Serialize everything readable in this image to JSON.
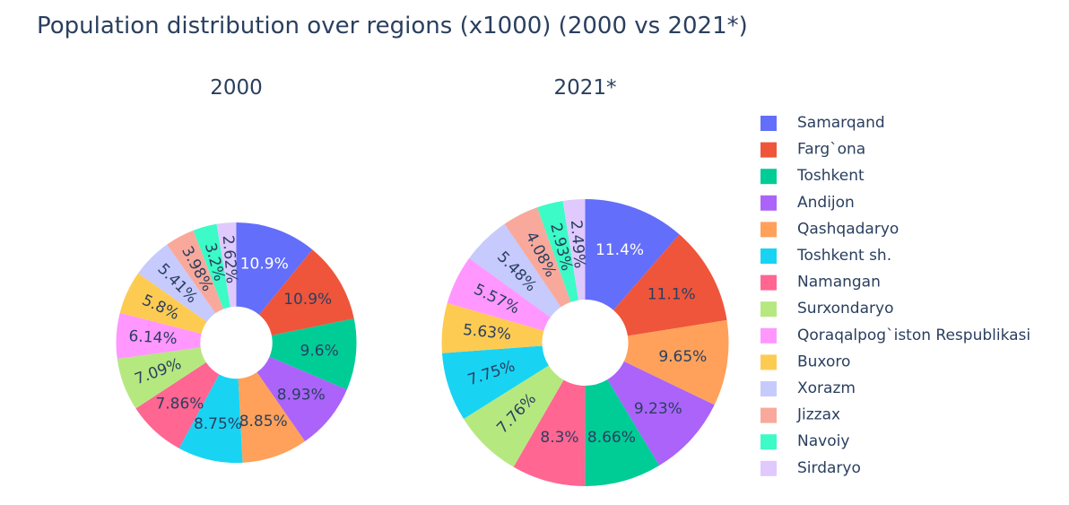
{
  "chart_data": {
    "type": "pie",
    "title": "Population distribution over regions (x1000) (2000 vs 2021*)",
    "hole": true,
    "legend_position": "right",
    "legend": [
      {
        "name": "Samarqand",
        "color": "#636efa"
      },
      {
        "name": "Farg`ona",
        "color": "#ef553b"
      },
      {
        "name": "Toshkent",
        "color": "#00cc96"
      },
      {
        "name": "Andijon",
        "color": "#ab63fa"
      },
      {
        "name": "Qashqadaryo",
        "color": "#ffa15a"
      },
      {
        "name": "Toshkent sh.",
        "color": "#19d3f3"
      },
      {
        "name": "Namangan",
        "color": "#ff6692"
      },
      {
        "name": "Surxondaryo",
        "color": "#b6e880"
      },
      {
        "name": "Qoraqalpog`iston Respublikasi",
        "color": "#ff97ff"
      },
      {
        "name": "Buxoro",
        "color": "#fecb52"
      },
      {
        "name": "Xorazm",
        "color": "#c6cafd"
      },
      {
        "name": "Jizzax",
        "color": "#f8a99b"
      },
      {
        "name": "Navoiy",
        "color": "#3cfbc6"
      },
      {
        "name": "Sirdaryo",
        "color": "#dfc9fd"
      }
    ],
    "pies": [
      {
        "subtitle": "2000",
        "slices": [
          {
            "name": "Samarqand",
            "value": 10.9,
            "label": "10.9%"
          },
          {
            "name": "Farg`ona",
            "value": 10.9,
            "label": "10.9%"
          },
          {
            "name": "Toshkent",
            "value": 9.6,
            "label": "9.6%"
          },
          {
            "name": "Andijon",
            "value": 8.93,
            "label": "8.93%"
          },
          {
            "name": "Qashqadaryo",
            "value": 8.85,
            "label": "8.85%"
          },
          {
            "name": "Toshkent sh.",
            "value": 8.75,
            "label": "8.75%"
          },
          {
            "name": "Namangan",
            "value": 7.86,
            "label": "7.86%"
          },
          {
            "name": "Surxondaryo",
            "value": 7.09,
            "label": "7.09%"
          },
          {
            "name": "Qoraqalpog`iston Respublikasi",
            "value": 6.14,
            "label": "6.14%"
          },
          {
            "name": "Buxoro",
            "value": 5.8,
            "label": "5.8%"
          },
          {
            "name": "Xorazm",
            "value": 5.41,
            "label": "5.41%"
          },
          {
            "name": "Jizzax",
            "value": 3.98,
            "label": "3.98%"
          },
          {
            "name": "Navoiy",
            "value": 3.2,
            "label": "3.2%"
          },
          {
            "name": "Sirdaryo",
            "value": 2.62,
            "label": "2.62%"
          }
        ]
      },
      {
        "subtitle": "2021*",
        "slices": [
          {
            "name": "Samarqand",
            "value": 11.4,
            "label": "11.4%"
          },
          {
            "name": "Farg`ona",
            "value": 11.1,
            "label": "11.1%"
          },
          {
            "name": "Qashqadaryo",
            "value": 9.65,
            "label": "9.65%"
          },
          {
            "name": "Andijon",
            "value": 9.23,
            "label": "9.23%"
          },
          {
            "name": "Toshkent",
            "value": 8.66,
            "label": "8.66%"
          },
          {
            "name": "Namangan",
            "value": 8.3,
            "label": "8.3%"
          },
          {
            "name": "Surxondaryo",
            "value": 7.76,
            "label": "7.76%"
          },
          {
            "name": "Toshkent sh.",
            "value": 7.75,
            "label": "7.75%"
          },
          {
            "name": "Buxoro",
            "value": 5.63,
            "label": "5.63%"
          },
          {
            "name": "Qoraqalpog`iston Respublikasi",
            "value": 5.57,
            "label": "5.57%"
          },
          {
            "name": "Xorazm",
            "value": 5.48,
            "label": "5.48%"
          },
          {
            "name": "Jizzax",
            "value": 4.08,
            "label": "4.08%"
          },
          {
            "name": "Navoiy",
            "value": 2.93,
            "label": "2.93%"
          },
          {
            "name": "Sirdaryo",
            "value": 2.49,
            "label": "2.49%"
          }
        ]
      }
    ]
  }
}
